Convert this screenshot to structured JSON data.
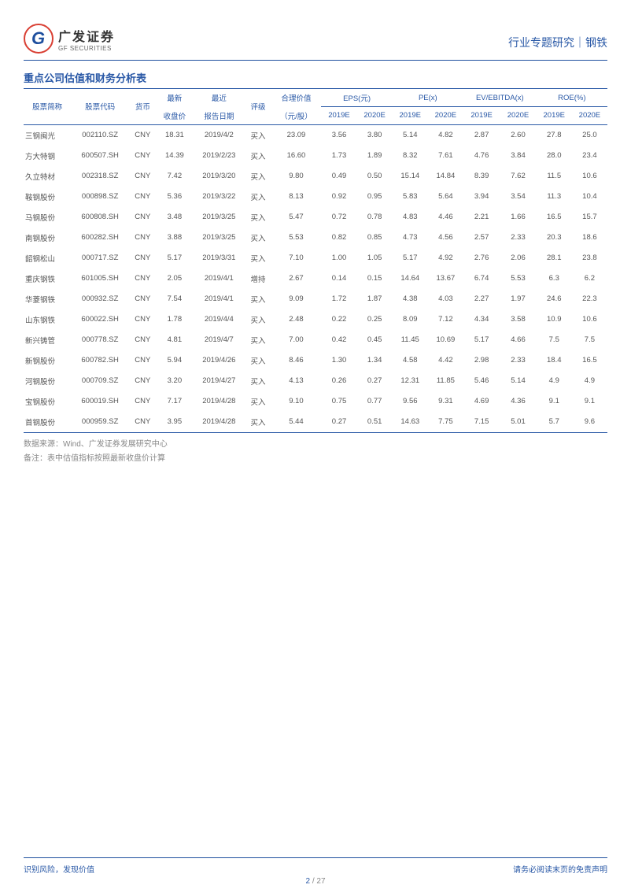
{
  "header": {
    "logo_cn": "广发证券",
    "logo_en": "GF SECURITIES",
    "right_text": "行业专题研究｜钢铁"
  },
  "table": {
    "title": "重点公司估值和财务分析表",
    "columns_top": {
      "name": "股票简称",
      "code": "股票代码",
      "currency": "货币",
      "close": "最新",
      "report": "最近",
      "rating": "评级",
      "fair": "合理价值",
      "eps": "EPS(元)",
      "pe": "PE(x)",
      "ev": "EV/EBITDA(x)",
      "roe": "ROE(%)"
    },
    "columns_bottom": {
      "close": "收盘价",
      "report": "报告日期",
      "fair": "（元/股）",
      "y1": "2019E",
      "y2": "2020E"
    },
    "rows": [
      {
        "name": "三钢闽光",
        "code": "002110.SZ",
        "currency": "CNY",
        "close": "18.31",
        "report": "2019/4/2",
        "rating": "买入",
        "fair": "23.09",
        "eps1": "3.56",
        "eps2": "3.80",
        "pe1": "5.14",
        "pe2": "4.82",
        "ev1": "2.87",
        "ev2": "2.60",
        "roe1": "27.8",
        "roe2": "25.0"
      },
      {
        "name": "方大特钢",
        "code": "600507.SH",
        "currency": "CNY",
        "close": "14.39",
        "report": "2019/2/23",
        "rating": "买入",
        "fair": "16.60",
        "eps1": "1.73",
        "eps2": "1.89",
        "pe1": "8.32",
        "pe2": "7.61",
        "ev1": "4.76",
        "ev2": "3.84",
        "roe1": "28.0",
        "roe2": "23.4"
      },
      {
        "name": "久立特材",
        "code": "002318.SZ",
        "currency": "CNY",
        "close": "7.42",
        "report": "2019/3/20",
        "rating": "买入",
        "fair": "9.80",
        "eps1": "0.49",
        "eps2": "0.50",
        "pe1": "15.14",
        "pe2": "14.84",
        "ev1": "8.39",
        "ev2": "7.62",
        "roe1": "11.5",
        "roe2": "10.6"
      },
      {
        "name": "鞍钢股份",
        "code": "000898.SZ",
        "currency": "CNY",
        "close": "5.36",
        "report": "2019/3/22",
        "rating": "买入",
        "fair": "8.13",
        "eps1": "0.92",
        "eps2": "0.95",
        "pe1": "5.83",
        "pe2": "5.64",
        "ev1": "3.94",
        "ev2": "3.54",
        "roe1": "11.3",
        "roe2": "10.4"
      },
      {
        "name": "马钢股份",
        "code": "600808.SH",
        "currency": "CNY",
        "close": "3.48",
        "report": "2019/3/25",
        "rating": "买入",
        "fair": "5.47",
        "eps1": "0.72",
        "eps2": "0.78",
        "pe1": "4.83",
        "pe2": "4.46",
        "ev1": "2.21",
        "ev2": "1.66",
        "roe1": "16.5",
        "roe2": "15.7"
      },
      {
        "name": "南钢股份",
        "code": "600282.SH",
        "currency": "CNY",
        "close": "3.88",
        "report": "2019/3/25",
        "rating": "买入",
        "fair": "5.53",
        "eps1": "0.82",
        "eps2": "0.85",
        "pe1": "4.73",
        "pe2": "4.56",
        "ev1": "2.57",
        "ev2": "2.33",
        "roe1": "20.3",
        "roe2": "18.6"
      },
      {
        "name": "韶钢松山",
        "code": "000717.SZ",
        "currency": "CNY",
        "close": "5.17",
        "report": "2019/3/31",
        "rating": "买入",
        "fair": "7.10",
        "eps1": "1.00",
        "eps2": "1.05",
        "pe1": "5.17",
        "pe2": "4.92",
        "ev1": "2.76",
        "ev2": "2.06",
        "roe1": "28.1",
        "roe2": "23.8"
      },
      {
        "name": "重庆钢铁",
        "code": "601005.SH",
        "currency": "CNY",
        "close": "2.05",
        "report": "2019/4/1",
        "rating": "增持",
        "fair": "2.67",
        "eps1": "0.14",
        "eps2": "0.15",
        "pe1": "14.64",
        "pe2": "13.67",
        "ev1": "6.74",
        "ev2": "5.53",
        "roe1": "6.3",
        "roe2": "6.2"
      },
      {
        "name": "华菱钢铁",
        "code": "000932.SZ",
        "currency": "CNY",
        "close": "7.54",
        "report": "2019/4/1",
        "rating": "买入",
        "fair": "9.09",
        "eps1": "1.72",
        "eps2": "1.87",
        "pe1": "4.38",
        "pe2": "4.03",
        "ev1": "2.27",
        "ev2": "1.97",
        "roe1": "24.6",
        "roe2": "22.3"
      },
      {
        "name": "山东钢铁",
        "code": "600022.SH",
        "currency": "CNY",
        "close": "1.78",
        "report": "2019/4/4",
        "rating": "买入",
        "fair": "2.48",
        "eps1": "0.22",
        "eps2": "0.25",
        "pe1": "8.09",
        "pe2": "7.12",
        "ev1": "4.34",
        "ev2": "3.58",
        "roe1": "10.9",
        "roe2": "10.6"
      },
      {
        "name": "新兴铸管",
        "code": "000778.SZ",
        "currency": "CNY",
        "close": "4.81",
        "report": "2019/4/7",
        "rating": "买入",
        "fair": "7.00",
        "eps1": "0.42",
        "eps2": "0.45",
        "pe1": "11.45",
        "pe2": "10.69",
        "ev1": "5.17",
        "ev2": "4.66",
        "roe1": "7.5",
        "roe2": "7.5"
      },
      {
        "name": "新钢股份",
        "code": "600782.SH",
        "currency": "CNY",
        "close": "5.94",
        "report": "2019/4/26",
        "rating": "买入",
        "fair": "8.46",
        "eps1": "1.30",
        "eps2": "1.34",
        "pe1": "4.58",
        "pe2": "4.42",
        "ev1": "2.98",
        "ev2": "2.33",
        "roe1": "18.4",
        "roe2": "16.5"
      },
      {
        "name": "河钢股份",
        "code": "000709.SZ",
        "currency": "CNY",
        "close": "3.20",
        "report": "2019/4/27",
        "rating": "买入",
        "fair": "4.13",
        "eps1": "0.26",
        "eps2": "0.27",
        "pe1": "12.31",
        "pe2": "11.85",
        "ev1": "5.46",
        "ev2": "5.14",
        "roe1": "4.9",
        "roe2": "4.9"
      },
      {
        "name": "宝钢股份",
        "code": "600019.SH",
        "currency": "CNY",
        "close": "7.17",
        "report": "2019/4/28",
        "rating": "买入",
        "fair": "9.10",
        "eps1": "0.75",
        "eps2": "0.77",
        "pe1": "9.56",
        "pe2": "9.31",
        "ev1": "4.69",
        "ev2": "4.36",
        "roe1": "9.1",
        "roe2": "9.1"
      },
      {
        "name": "首钢股份",
        "code": "000959.SZ",
        "currency": "CNY",
        "close": "3.95",
        "report": "2019/4/28",
        "rating": "买入",
        "fair": "5.44",
        "eps1": "0.27",
        "eps2": "0.51",
        "pe1": "14.63",
        "pe2": "7.75",
        "ev1": "7.15",
        "ev2": "5.01",
        "roe1": "5.7",
        "roe2": "9.6"
      }
    ],
    "notes": [
      "数据来源：Wind、广发证券发展研究中心",
      "备注：表中估值指标按照最新收盘价计算"
    ]
  },
  "footer": {
    "left": "识别风险，发现价值",
    "right": "请务必阅读末页的免责声明",
    "page_current": "2",
    "page_sep": " / ",
    "page_total": "27"
  }
}
